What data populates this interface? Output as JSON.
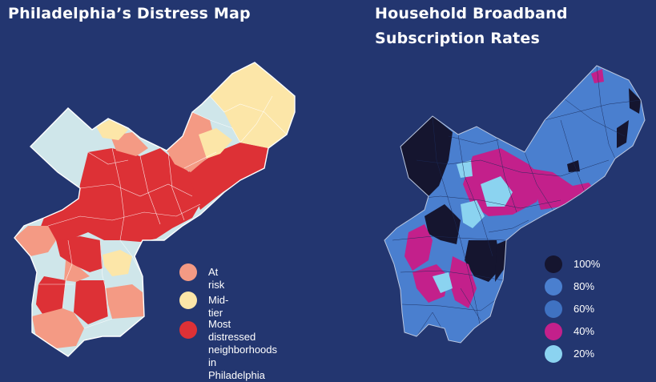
{
  "left_map": {
    "title": "Philadelphia’s Distress Map",
    "legend": [
      {
        "label": "At risk",
        "color": "#f49a84"
      },
      {
        "label": "Mid-tier",
        "color": "#fce6a8"
      },
      {
        "label": "Most distressed\nneighborhoods in\nPhiladelphia",
        "color": "#dd3136"
      }
    ],
    "colors": {
      "low_distress": "#cfe6ea",
      "outline": "#ffffff"
    }
  },
  "right_map": {
    "title": "Household Broadband\nSubscription Rates",
    "legend": [
      {
        "label": "100%",
        "color": "#15152f"
      },
      {
        "label": "80%",
        "color": "#4a7fcf"
      },
      {
        "label": "60%",
        "color": "#3f72c2"
      },
      {
        "label": "40%",
        "color": "#c3208b"
      },
      {
        "label": "20%",
        "color": "#8bd3f0"
      }
    ],
    "colors": {
      "outline": "#1c2c5a"
    }
  }
}
